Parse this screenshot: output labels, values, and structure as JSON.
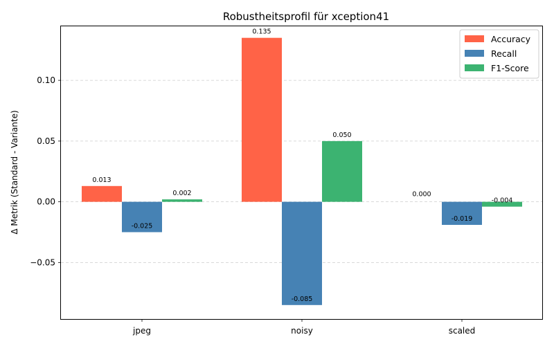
{
  "chart_data": {
    "type": "bar",
    "title": "Robustheitsprofil für xception41",
    "xlabel": "",
    "ylabel": "Δ Metrik (Standard - Variante)",
    "categories": [
      "jpeg",
      "noisy",
      "scaled"
    ],
    "series": [
      {
        "name": "Accuracy",
        "color": "#ff6347",
        "values": [
          0.013,
          0.135,
          0.0
        ],
        "labels": [
          "0.013",
          "0.135",
          "0.000"
        ]
      },
      {
        "name": "Recall",
        "color": "#4682b4",
        "values": [
          -0.025,
          -0.085,
          -0.019
        ],
        "labels": [
          "-0.025",
          "-0.085",
          "-0.019"
        ]
      },
      {
        "name": "F1-Score",
        "color": "#3cb371",
        "values": [
          0.002,
          0.05,
          -0.004
        ],
        "labels": [
          "0.002",
          "0.050",
          "-0.004"
        ]
      }
    ],
    "ylim": [
      -0.0965,
      0.1445
    ],
    "yticks": [
      -0.05,
      0.0,
      0.05,
      0.1
    ],
    "ytick_labels": [
      "−0.05",
      "0.00",
      "0.05",
      "0.10"
    ],
    "grid": "horizontal dashed",
    "legend_position": "top-right"
  }
}
